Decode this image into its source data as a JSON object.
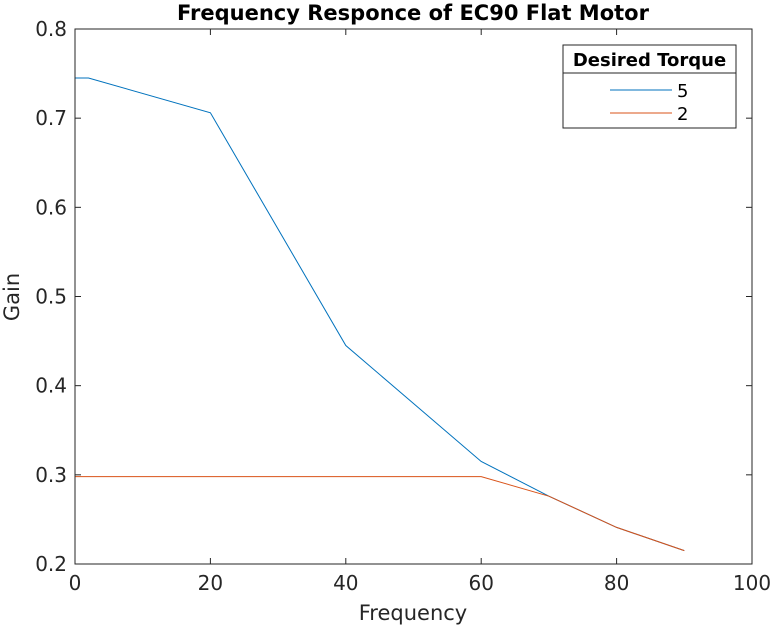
{
  "chart_data": {
    "type": "line",
    "title": "Frequency Responce of EC90 Flat Motor",
    "xlabel": "Frequency",
    "ylabel": "Gain",
    "xlim": [
      0,
      100
    ],
    "ylim": [
      0.2,
      0.8
    ],
    "xticks": [
      0,
      20,
      40,
      60,
      80,
      100
    ],
    "yticks": [
      0.2,
      0.3,
      0.4,
      0.5,
      0.6,
      0.7,
      0.8
    ],
    "xtick_labels": [
      "0",
      "20",
      "40",
      "60",
      "80",
      "100"
    ],
    "ytick_labels": [
      "0.2",
      "0.3",
      "0.4",
      "0.5",
      "0.6",
      "0.7",
      "0.8"
    ],
    "grid": false,
    "legend": {
      "title": "Desired Torque",
      "placement": "top-right"
    },
    "series": [
      {
        "name": "5",
        "color": "#0072BD",
        "x": [
          0,
          2,
          20,
          40,
          60,
          70,
          80,
          90
        ],
        "y": [
          0.745,
          0.745,
          0.706,
          0.445,
          0.315,
          0.276,
          0.241,
          0.215
        ]
      },
      {
        "name": "2",
        "color": "#D95319",
        "x": [
          0,
          60,
          70,
          80,
          90
        ],
        "y": [
          0.298,
          0.298,
          0.276,
          0.241,
          0.215
        ]
      }
    ]
  }
}
